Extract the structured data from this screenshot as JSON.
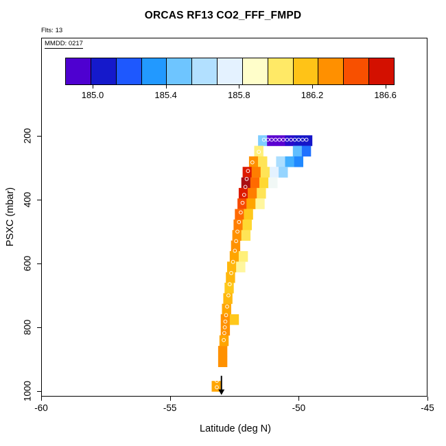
{
  "title": "ORCAS RF13 CO2_FFF_FMPD",
  "annotations": {
    "flights": "Flts: 13",
    "date": "MMDD: 0217"
  },
  "chart_data": {
    "type": "heatmap",
    "title": "ORCAS RF13 CO2_FFF_FMPD",
    "xlabel": "Latitude (deg N)",
    "ylabel": "PSXC (mbar)",
    "xlim": [
      -60,
      -45
    ],
    "ylim": [
      1050,
      80
    ],
    "y_inverted": true,
    "grid": false,
    "x_ticks": [
      {
        "label": "-60",
        "value": -60
      },
      {
        "label": "-55",
        "value": -55
      },
      {
        "label": "-50",
        "value": -50
      },
      {
        "label": "-45",
        "value": -45
      }
    ],
    "y_ticks": [
      {
        "label": "200",
        "value": 200
      },
      {
        "label": "400",
        "value": 400
      },
      {
        "label": "600",
        "value": 600
      },
      {
        "label": "800",
        "value": 800
      },
      {
        "label": "1000",
        "value": 1000
      }
    ],
    "colorbar": {
      "position": "top-inside",
      "domain": [
        184.85,
        186.65
      ],
      "segments": 13,
      "tick_values": [
        185.0,
        185.4,
        185.8,
        186.2,
        186.6
      ],
      "tick_labels": [
        "185.0",
        "185.4",
        "185.8",
        "186.2",
        "186.6"
      ],
      "color_stops": [
        [
          184.85,
          "#7a00cf"
        ],
        [
          184.95,
          "#3a00d0"
        ],
        [
          185.05,
          "#1515c8"
        ],
        [
          185.2,
          "#1e5aff"
        ],
        [
          185.35,
          "#23a0ff"
        ],
        [
          185.5,
          "#7fcdff"
        ],
        [
          185.65,
          "#c3e6ff"
        ],
        [
          185.78,
          "#eef6ff"
        ],
        [
          185.88,
          "#ffffd0"
        ],
        [
          186.0,
          "#fff07a"
        ],
        [
          186.12,
          "#ffd323"
        ],
        [
          186.25,
          "#ffa500"
        ],
        [
          186.4,
          "#ff6a00"
        ],
        [
          186.5,
          "#ef2c00"
        ],
        [
          186.58,
          "#d31000"
        ],
        [
          186.65,
          "#aa0e12"
        ]
      ]
    },
    "cells": [
      [
        -51.4,
        215,
        185.5
      ],
      [
        -51.05,
        215,
        184.9
      ],
      [
        -50.7,
        215,
        184.9
      ],
      [
        -50.35,
        215,
        185.0
      ],
      [
        -50.0,
        215,
        185.05
      ],
      [
        -49.65,
        215,
        185.05
      ],
      [
        -51.55,
        248,
        186.0
      ],
      [
        -50.05,
        248,
        185.45
      ],
      [
        -49.7,
        248,
        185.25
      ],
      [
        -51.75,
        281,
        186.3
      ],
      [
        -51.4,
        281,
        186.05
      ],
      [
        -50.7,
        281,
        185.6
      ],
      [
        -50.35,
        281,
        185.4
      ],
      [
        -50.0,
        281,
        185.3
      ],
      [
        -52.0,
        314,
        186.55
      ],
      [
        -51.65,
        314,
        186.35
      ],
      [
        -51.3,
        314,
        186.05
      ],
      [
        -50.95,
        314,
        185.75
      ],
      [
        -50.6,
        314,
        185.55
      ],
      [
        -52.05,
        347,
        186.65
      ],
      [
        -51.7,
        347,
        186.4
      ],
      [
        -51.35,
        347,
        186.1
      ],
      [
        -51.0,
        347,
        185.8
      ],
      [
        -52.15,
        380,
        186.55
      ],
      [
        -51.8,
        380,
        186.35
      ],
      [
        -51.45,
        380,
        186.05
      ],
      [
        -52.2,
        413,
        186.45
      ],
      [
        -51.85,
        413,
        186.25
      ],
      [
        -51.5,
        413,
        185.95
      ],
      [
        -52.3,
        446,
        186.4
      ],
      [
        -51.95,
        446,
        186.15
      ],
      [
        -52.35,
        479,
        186.35
      ],
      [
        -52.0,
        479,
        186.1
      ],
      [
        -52.4,
        512,
        186.3
      ],
      [
        -52.05,
        512,
        186.05
      ],
      [
        -52.45,
        545,
        186.3
      ],
      [
        -52.5,
        578,
        186.25
      ],
      [
        -52.15,
        578,
        186.0
      ],
      [
        -52.6,
        611,
        186.2
      ],
      [
        -52.25,
        611,
        185.95
      ],
      [
        -52.65,
        644,
        186.2
      ],
      [
        -52.7,
        677,
        186.15
      ],
      [
        -52.75,
        710,
        186.2
      ],
      [
        -52.8,
        743,
        186.25
      ],
      [
        -52.85,
        776,
        186.3
      ],
      [
        -52.5,
        776,
        186.15
      ],
      [
        -52.85,
        809,
        186.3
      ],
      [
        -52.9,
        842,
        186.25
      ],
      [
        -52.95,
        875,
        186.3
      ],
      [
        -52.95,
        908,
        186.3
      ],
      [
        -53.2,
        985,
        186.25
      ]
    ],
    "track_points": [
      [
        -51.35,
        212
      ],
      [
        -51.2,
        212
      ],
      [
        -51.05,
        212
      ],
      [
        -50.9,
        212
      ],
      [
        -50.75,
        212
      ],
      [
        -50.6,
        212
      ],
      [
        -50.45,
        212
      ],
      [
        -50.3,
        212
      ],
      [
        -50.15,
        212
      ],
      [
        -50.0,
        212
      ],
      [
        -49.85,
        212
      ],
      [
        -49.7,
        212
      ],
      [
        -51.55,
        250
      ],
      [
        -51.8,
        283
      ],
      [
        -51.97,
        310
      ],
      [
        -52.02,
        335
      ],
      [
        -52.07,
        360
      ],
      [
        -52.12,
        385
      ],
      [
        -52.18,
        410
      ],
      [
        -52.25,
        440
      ],
      [
        -52.32,
        470
      ],
      [
        -52.38,
        500
      ],
      [
        -52.43,
        530
      ],
      [
        -52.48,
        560
      ],
      [
        -52.55,
        595
      ],
      [
        -52.62,
        630
      ],
      [
        -52.68,
        665
      ],
      [
        -52.73,
        700
      ],
      [
        -52.78,
        735
      ],
      [
        -52.82,
        762
      ],
      [
        -52.85,
        782
      ],
      [
        -52.87,
        800
      ],
      [
        -52.89,
        818
      ],
      [
        -52.91,
        840
      ],
      [
        -53.18,
        968
      ],
      [
        -53.18,
        988
      ]
    ],
    "arrow": {
      "lat": -53.0,
      "p_start": 952,
      "p_end": 1012
    }
  }
}
